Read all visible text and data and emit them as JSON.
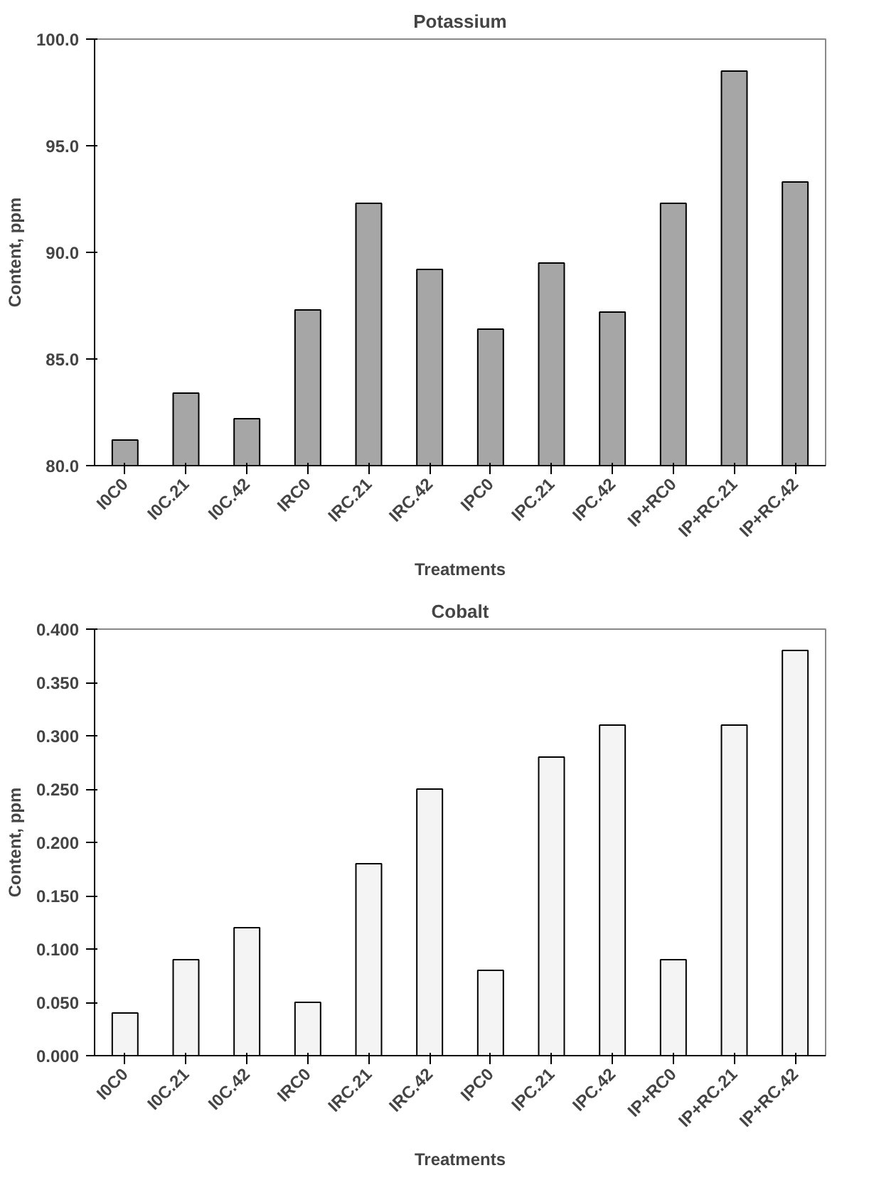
{
  "chart_data": [
    {
      "type": "bar",
      "title": "Potassium",
      "xlabel": "Treatments",
      "ylabel": "Content, ppm",
      "categories": [
        "I0C0",
        "I0C.21",
        "I0C.42",
        "IRC0",
        "IRC.21",
        "IRC.42",
        "IPC0",
        "IPC.21",
        "IPC.42",
        "IP+RC0",
        "IP+RC.21",
        "IP+RC.42"
      ],
      "values": [
        81.2,
        83.4,
        82.2,
        87.3,
        92.3,
        89.2,
        86.4,
        89.5,
        87.2,
        92.3,
        98.5,
        93.3
      ],
      "color": "#a6a6a6",
      "ylim": [
        80,
        100
      ],
      "yticks": [
        {
          "value": 80,
          "label": "80.0"
        },
        {
          "value": 85,
          "label": "85.0"
        },
        {
          "value": 90,
          "label": "90.0"
        },
        {
          "value": 95,
          "label": "95.0"
        },
        {
          "value": 100,
          "label": "100.0"
        }
      ]
    },
    {
      "type": "bar",
      "title": "Cobalt",
      "xlabel": "Treatments",
      "ylabel": "Content, ppm",
      "categories": [
        "I0C0",
        "I0C.21",
        "I0C.42",
        "IRC0",
        "IRC.21",
        "IRC.42",
        "IPC0",
        "IPC.21",
        "IPC.42",
        "IP+RC0",
        "IP+RC.21",
        "IP+RC.42"
      ],
      "values": [
        0.04,
        0.09,
        0.12,
        0.05,
        0.18,
        0.25,
        0.08,
        0.28,
        0.31,
        0.09,
        0.31,
        0.38
      ],
      "color": "#f4f4f4",
      "ylim": [
        0,
        0.4
      ],
      "yticks": [
        {
          "value": 0,
          "label": "0.000"
        },
        {
          "value": 0.05,
          "label": "0.050"
        },
        {
          "value": 0.1,
          "label": "0.100"
        },
        {
          "value": 0.15,
          "label": "0.150"
        },
        {
          "value": 0.2,
          "label": "0.200"
        },
        {
          "value": 0.25,
          "label": "0.250"
        },
        {
          "value": 0.3,
          "label": "0.300"
        },
        {
          "value": 0.35,
          "label": "0.350"
        },
        {
          "value": 0.4,
          "label": "0.400"
        }
      ]
    }
  ]
}
